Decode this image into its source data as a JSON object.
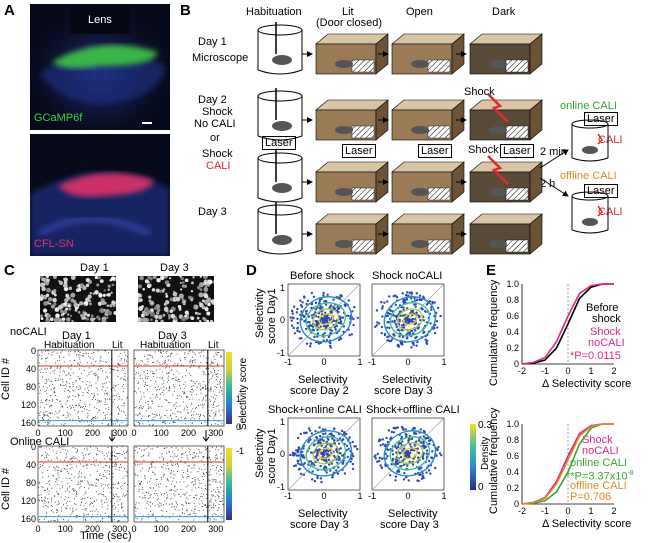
{
  "panels": {
    "a": "A",
    "b": "B",
    "c": "C",
    "d": "D",
    "e": "E"
  },
  "panel_a": {
    "top_title": "Lens",
    "top_label": "GCaMP6f",
    "bottom_label": "CFL-SN",
    "colors": {
      "gcamp": "#3fcf3f",
      "cfl": "#e0306a",
      "dapi": "#2a3aa0"
    }
  },
  "panel_b": {
    "stages": [
      "Habituation",
      "Lit",
      "(Door closed)",
      "Open",
      "Dark"
    ],
    "day1": "Day 1",
    "microscope": "Microscope",
    "day2": "Day 2",
    "shock_no_cali": [
      "Shock",
      "No CALI"
    ],
    "or": "or",
    "shock_cali": [
      "Shock",
      "CALI"
    ],
    "laser": "Laser",
    "shock": "Shock",
    "day3": "Day 3",
    "online_cali": "online CALI",
    "offline_cali": "offline CALI",
    "two_min": "2 min",
    "two_h": "2 h",
    "cali": "CALI",
    "colors": {
      "red": "#e02a2a",
      "green": "#2aa02a",
      "orange": "#e08a20"
    }
  },
  "panel_c": {
    "day1": "Day 1",
    "day3": "Day 3",
    "nocali": "noCALI",
    "online": "Online CALI",
    "habituation": "Habituation",
    "lit": "Lit",
    "ylabel": "Cell ID #",
    "xlabel": "Time (sec)",
    "yticks": [
      "0",
      "40",
      "80",
      "120",
      "160"
    ],
    "xticks": [
      "0",
      "100",
      "200",
      "300"
    ],
    "colorbar_label": "Selectivity score",
    "colorbar_ticks": [
      "1",
      "0",
      "-1"
    ]
  },
  "panel_d": {
    "titles": [
      "Before shock",
      "Shock noCALI",
      "Shock+online CALI",
      "Shock+offline CALI"
    ],
    "ylabel": [
      "Selectivity",
      "score Day1"
    ],
    "xlabels_top": [
      [
        "Selectivity",
        "score Day 2"
      ],
      [
        "Selectivity",
        "score Day 3"
      ]
    ],
    "xlabels_bottom": [
      [
        "Selectivity",
        "score Day 3"
      ],
      [
        "Selectivity",
        "score Day 3"
      ]
    ],
    "ticks": [
      "-1",
      "0",
      "1"
    ],
    "density_label": "Density",
    "density_ticks": [
      "0.3",
      "0"
    ]
  },
  "panel_e": {
    "ylabel": "Cumulative frequency",
    "xlabel": "Δ Selectivity score",
    "yticks": [
      "1.0",
      "0.8",
      "0.6",
      "0.4",
      "0.2",
      "0"
    ],
    "xticks": [
      "-2",
      "-1",
      "0",
      "1",
      "2"
    ],
    "top_legend": {
      "before": [
        "Before",
        "shock"
      ],
      "nocali": [
        "Shock",
        "noCALI"
      ],
      "p": "*P=0.0115"
    },
    "bottom_legend": {
      "nocali": [
        "Shock",
        "noCALI"
      ],
      "online": "online CALI",
      "p_online": "**P=3.37x10",
      "p_online_exp": "-8",
      "offline": "offline CALI",
      "p_offline": "P=0.706"
    },
    "colors": {
      "black": "#000000",
      "magenta": "#e0268c",
      "green": "#35a835",
      "orange": "#e08a20"
    }
  },
  "chart_data": [
    {
      "type": "line",
      "title": "Cumulative frequency (top)",
      "xlabel": "Δ Selectivity score",
      "ylabel": "Cumulative frequency",
      "xlim": [
        -2,
        2
      ],
      "ylim": [
        0,
        1
      ],
      "x": [
        -2,
        -1.5,
        -1,
        -0.5,
        0,
        0.5,
        1,
        1.5,
        2
      ],
      "series": [
        {
          "name": "Before shock",
          "values": [
            0,
            0.01,
            0.05,
            0.2,
            0.5,
            0.82,
            0.96,
            1.0,
            1.0
          ]
        },
        {
          "name": "Shock noCALI",
          "values": [
            0,
            0.02,
            0.08,
            0.28,
            0.6,
            0.88,
            0.98,
            1.0,
            1.0
          ]
        }
      ]
    },
    {
      "type": "line",
      "title": "Cumulative frequency (bottom)",
      "xlabel": "Δ Selectivity score",
      "ylabel": "Cumulative frequency",
      "xlim": [
        -2,
        2
      ],
      "ylim": [
        0,
        1
      ],
      "x": [
        -2,
        -1.5,
        -1,
        -0.5,
        0,
        0.5,
        1,
        1.5,
        2
      ],
      "series": [
        {
          "name": "Shock noCALI",
          "values": [
            0,
            0.02,
            0.08,
            0.28,
            0.6,
            0.88,
            0.98,
            1.0,
            1.0
          ]
        },
        {
          "name": "online CALI",
          "values": [
            0,
            0.01,
            0.04,
            0.15,
            0.4,
            0.75,
            0.95,
            1.0,
            1.0
          ]
        },
        {
          "name": "offline CALI",
          "values": [
            0,
            0.02,
            0.07,
            0.25,
            0.55,
            0.85,
            0.97,
            1.0,
            1.0
          ]
        }
      ]
    }
  ]
}
